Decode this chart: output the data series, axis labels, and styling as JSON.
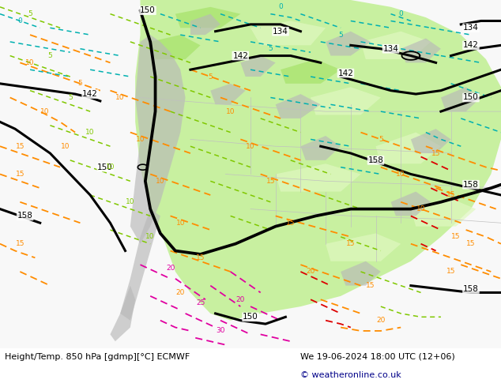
{
  "bottom_left_text": "Height/Temp. 850 hPa [gdmp][°C] ECMWF",
  "bottom_right_text": "We 19-06-2024 18:00 UTC (12+06)",
  "copyright_text": "© weatheronline.co.uk",
  "bg_color": "#ffffff",
  "map_bg_color": "#f0f0f0",
  "fig_width": 6.34,
  "fig_height": 4.9,
  "dpi": 100,
  "green_main": "#c8f0a0",
  "green_bright": "#a0e060",
  "gray_terrain": "#b8b8b8",
  "black_lw": 2.2,
  "orange_color": "#ff8c00",
  "cyan_color": "#00b0b0",
  "lime_color": "#80c800",
  "mag_color": "#e000a0",
  "red_color": "#dd0000"
}
